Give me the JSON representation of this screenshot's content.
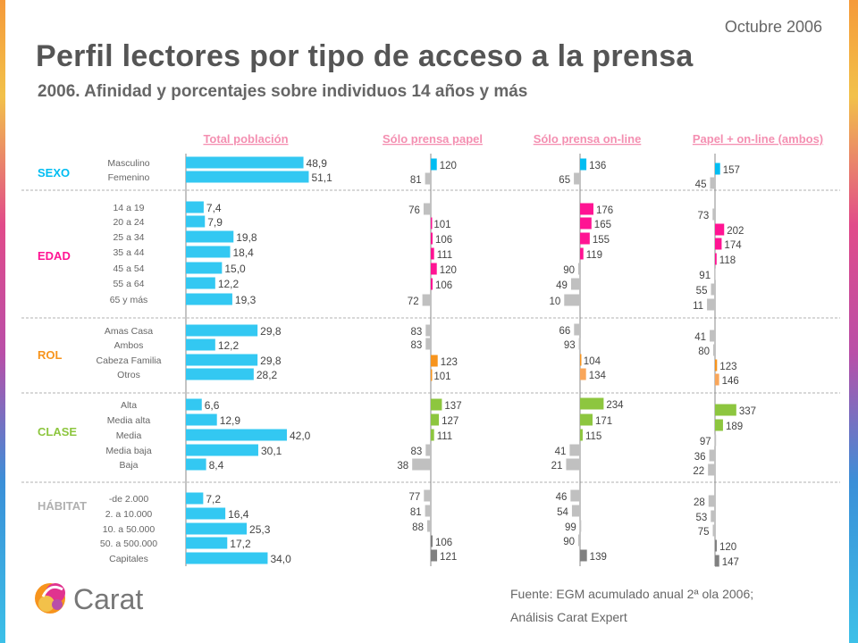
{
  "header": {
    "date": "Octubre 2006",
    "title": "Perfil lectores por tipo de acceso a la prensa",
    "subtitle": "2006. Afinidad y porcentajes sobre individuos 14 años y más"
  },
  "footer": {
    "source_line1": "Fuente: EGM acumulado anual 2ª ola 2006;",
    "source_line2": "Análisis Carat Expert"
  },
  "logo": {
    "text": "Carat"
  },
  "colors": {
    "total_bar": "#33c8f2",
    "grey_bar": "#c0c0c0",
    "dark_grey_bar": "#808080",
    "sexo": "#00bdf2",
    "edad": "#ff1493",
    "rol": "#f7941d",
    "rol_light": "#f9a65a",
    "clase": "#8dc63f",
    "habitat": "#b0b0b0",
    "divider": "#b0b0b0",
    "header_link": "#f48fb1"
  },
  "chart_data": {
    "type": "bar",
    "columns": [
      "Total población",
      "Sólo prensa papel",
      "Sólo prensa on-line",
      "Papel + on-line (ambos)"
    ],
    "groups": [
      {
        "name": "SEXO",
        "color_key": "sexo",
        "categories": [
          "Masculino",
          "Femenino"
        ],
        "total": [
          "48,9",
          "51,1"
        ],
        "papel": [
          120,
          81
        ],
        "online": [
          136,
          65
        ],
        "ambos": [
          157,
          45
        ]
      },
      {
        "name": "EDAD",
        "color_key": "edad",
        "categories": [
          "14 a 19",
          "20 a 24",
          "25 a 34",
          "35 a 44",
          "45 a 54",
          "55 a 64",
          "65 y más"
        ],
        "total": [
          "7,4",
          "7,9",
          "19,8",
          "18,4",
          "15,0",
          "12,2",
          "19,3"
        ],
        "papel": [
          76,
          101,
          106,
          111,
          120,
          106,
          72
        ],
        "online": [
          176,
          165,
          155,
          119,
          90,
          49,
          10
        ],
        "ambos": [
          73,
          202,
          174,
          118,
          91,
          55,
          11
        ]
      },
      {
        "name": "ROL",
        "color_key": "rol",
        "categories": [
          "Amas Casa",
          "Ambos",
          "Cabeza Familia",
          "Otros"
        ],
        "total": [
          "29,8",
          "12,2",
          "29,8",
          "28,2"
        ],
        "papel": [
          83,
          83,
          123,
          101
        ],
        "online": [
          66,
          93,
          104,
          134
        ],
        "ambos": [
          41,
          80,
          123,
          146
        ]
      },
      {
        "name": "CLASE",
        "color_key": "clase",
        "categories": [
          "Alta",
          "Media alta",
          "Media",
          "Media baja",
          "Baja"
        ],
        "total": [
          "6,6",
          "12,9",
          "42,0",
          "30,1",
          "8,4"
        ],
        "papel": [
          137,
          127,
          111,
          83,
          38
        ],
        "online": [
          234,
          171,
          115,
          41,
          21
        ],
        "ambos": [
          337,
          189,
          97,
          36,
          22
        ]
      },
      {
        "name": "HÁBITAT",
        "color_key": "habitat",
        "categories": [
          "-de 2.000",
          "2. a 10.000",
          "10. a 50.000",
          "50. a 500.000",
          "Capitales"
        ],
        "total": [
          "7,2",
          "16,4",
          "25,3",
          "17,2",
          "34,0"
        ],
        "papel": [
          77,
          81,
          88,
          106,
          121
        ],
        "online": [
          46,
          54,
          99,
          90,
          139
        ],
        "ambos": [
          28,
          53,
          75,
          120,
          147
        ]
      }
    ]
  }
}
